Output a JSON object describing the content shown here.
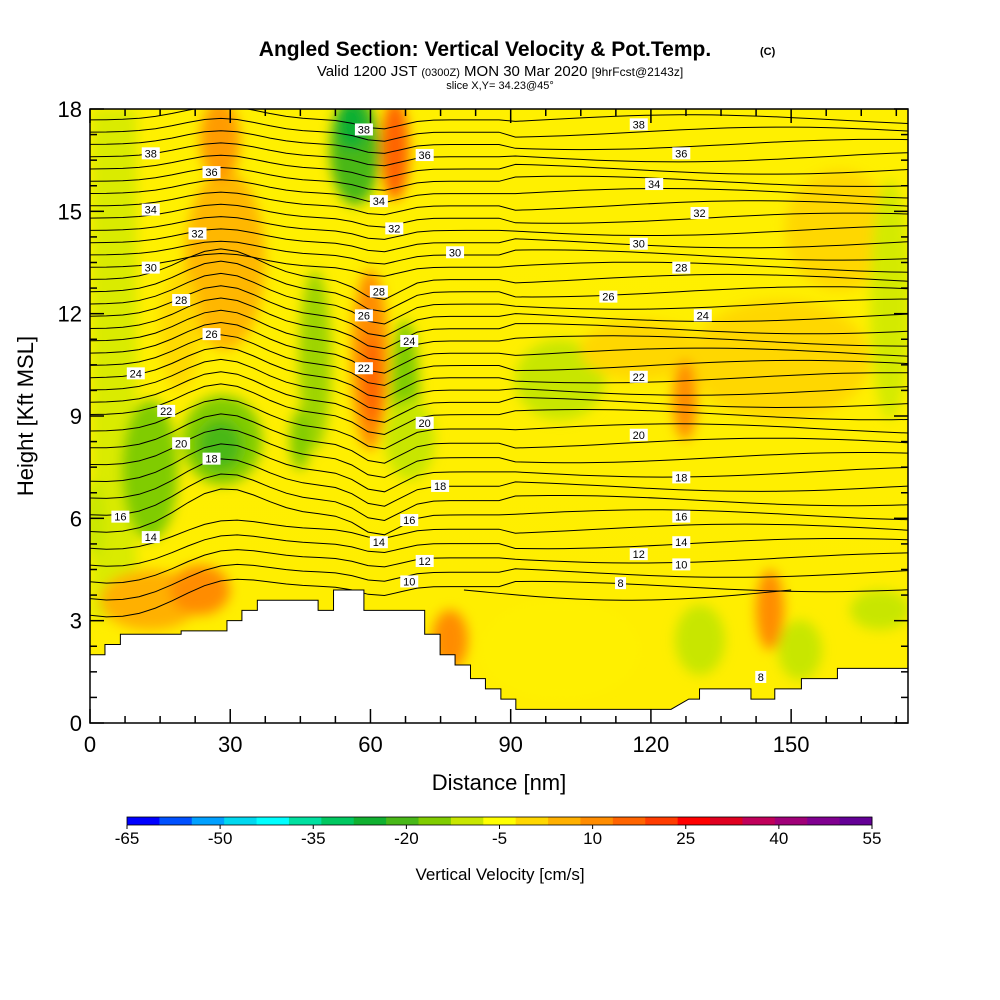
{
  "chart_data": {
    "type": "heatmap",
    "title": "Angled Section: Vertical Velocity & Pot.Temp.",
    "title_mark": "(C)",
    "subtitle_pre": "Valid 1200 JST",
    "subtitle_zulu": "(0300Z)",
    "subtitle_date": "MON 30 Mar 2020",
    "subtitle_fcst": "[9hrFcst@2143z]",
    "slice_label": "slice X,Y= 34.23@45°",
    "xlabel": "Distance [nm]",
    "ylabel": "Height [Kft MSL]",
    "xlim": [
      0,
      175
    ],
    "ylim": [
      0,
      18
    ],
    "x_ticks": [
      "0",
      "30",
      "60",
      "90",
      "120",
      "150"
    ],
    "x_tick_values": [
      0,
      30,
      60,
      90,
      120,
      150
    ],
    "y_ticks": [
      "0",
      "3",
      "6",
      "9",
      "12",
      "15",
      "18"
    ],
    "y_tick_values": [
      0,
      3,
      6,
      9,
      12,
      15,
      18
    ],
    "colorbar": {
      "title": "Vertical Velocity [cm/s]",
      "labels": [
        "-65",
        "-50",
        "-35",
        "-20",
        "-5",
        "10",
        "25",
        "40",
        "55"
      ],
      "colors": [
        "#0000ff",
        "#0050ff",
        "#00a0ff",
        "#00d8f0",
        "#00ffff",
        "#00e0a0",
        "#00c860",
        "#10b030",
        "#48b818",
        "#80cc00",
        "#c8e600",
        "#ffff00",
        "#ffd700",
        "#ffb000",
        "#ff8c00",
        "#ff6400",
        "#ff3c00",
        "#ff0000",
        "#e00020",
        "#c0005a",
        "#a00078",
        "#800090",
        "#640096"
      ]
    },
    "contour_labels": [
      {
        "text": "38",
        "x": 13,
        "y": 16.7
      },
      {
        "text": "36",
        "x": 26,
        "y": 16.15
      },
      {
        "text": "34",
        "x": 13,
        "y": 15.05
      },
      {
        "text": "32",
        "x": 23,
        "y": 14.35
      },
      {
        "text": "30",
        "x": 13,
        "y": 13.35
      },
      {
        "text": "28",
        "x": 19.5,
        "y": 12.4
      },
      {
        "text": "26",
        "x": 26,
        "y": 11.4
      },
      {
        "text": "24",
        "x": 9.8,
        "y": 10.25
      },
      {
        "text": "22",
        "x": 16.3,
        "y": 9.15
      },
      {
        "text": "20",
        "x": 19.5,
        "y": 8.2
      },
      {
        "text": "18",
        "x": 26,
        "y": 7.75
      },
      {
        "text": "16",
        "x": 6.5,
        "y": 6.05
      },
      {
        "text": "14",
        "x": 13,
        "y": 5.45
      },
      {
        "text": "38",
        "x": 58.6,
        "y": 17.4
      },
      {
        "text": "36",
        "x": 71.6,
        "y": 16.65
      },
      {
        "text": "34",
        "x": 61.8,
        "y": 15.3
      },
      {
        "text": "32",
        "x": 65.1,
        "y": 14.5
      },
      {
        "text": "30",
        "x": 78.1,
        "y": 13.8
      },
      {
        "text": "28",
        "x": 61.8,
        "y": 12.65
      },
      {
        "text": "26",
        "x": 58.6,
        "y": 11.95
      },
      {
        "text": "24",
        "x": 68.3,
        "y": 11.2
      },
      {
        "text": "22",
        "x": 58.6,
        "y": 10.4
      },
      {
        "text": "20",
        "x": 71.6,
        "y": 8.8
      },
      {
        "text": "18",
        "x": 74.9,
        "y": 6.95
      },
      {
        "text": "16",
        "x": 68.3,
        "y": 5.95
      },
      {
        "text": "14",
        "x": 61.8,
        "y": 5.3
      },
      {
        "text": "12",
        "x": 71.6,
        "y": 4.75
      },
      {
        "text": "10",
        "x": 68.3,
        "y": 4.15
      },
      {
        "text": "38",
        "x": 117.4,
        "y": 17.55
      },
      {
        "text": "36",
        "x": 126.5,
        "y": 16.7
      },
      {
        "text": "34",
        "x": 120.7,
        "y": 15.8
      },
      {
        "text": "32",
        "x": 130.4,
        "y": 14.95
      },
      {
        "text": "30",
        "x": 117.4,
        "y": 14.05
      },
      {
        "text": "28",
        "x": 126.5,
        "y": 13.35
      },
      {
        "text": "26",
        "x": 110.9,
        "y": 12.5
      },
      {
        "text": "24",
        "x": 131.1,
        "y": 11.95
      },
      {
        "text": "22",
        "x": 117.4,
        "y": 10.15
      },
      {
        "text": "20",
        "x": 117.4,
        "y": 8.45
      },
      {
        "text": "18",
        "x": 126.5,
        "y": 7.2
      },
      {
        "text": "16",
        "x": 126.5,
        "y": 6.05
      },
      {
        "text": "14",
        "x": 126.5,
        "y": 5.3
      },
      {
        "text": "12",
        "x": 117.4,
        "y": 4.95
      },
      {
        "text": "10",
        "x": 126.5,
        "y": 4.65
      },
      {
        "text": "8",
        "x": 113.5,
        "y": 4.1
      },
      {
        "text": "8",
        "x": 143.5,
        "y": 1.35
      }
    ],
    "terrain": [
      [
        0,
        2.0
      ],
      [
        3.2,
        2.0
      ],
      [
        3.2,
        2.3
      ],
      [
        6.5,
        2.3
      ],
      [
        6.5,
        2.6
      ],
      [
        19.5,
        2.6
      ],
      [
        19.5,
        2.7
      ],
      [
        29.3,
        2.7
      ],
      [
        29.3,
        3.0
      ],
      [
        32.5,
        3.0
      ],
      [
        32.5,
        3.3
      ],
      [
        35.8,
        3.3
      ],
      [
        35.8,
        3.6
      ],
      [
        48.8,
        3.6
      ],
      [
        48.8,
        3.3
      ],
      [
        52.1,
        3.3
      ],
      [
        52.1,
        3.9
      ],
      [
        58.6,
        3.9
      ],
      [
        58.6,
        3.3
      ],
      [
        71.6,
        3.3
      ],
      [
        71.6,
        2.6
      ],
      [
        74.9,
        2.6
      ],
      [
        74.9,
        2.0
      ],
      [
        78.1,
        2.0
      ],
      [
        78.1,
        1.7
      ],
      [
        81.4,
        1.7
      ],
      [
        81.4,
        1.3
      ],
      [
        84.6,
        1.3
      ],
      [
        84.6,
        1.0
      ],
      [
        87.9,
        1.0
      ],
      [
        87.9,
        0.7
      ],
      [
        91.1,
        0.7
      ],
      [
        91.1,
        0.4
      ],
      [
        117.4,
        0.4
      ],
      [
        124.3,
        0.4
      ],
      [
        128.1,
        0.7
      ],
      [
        130.4,
        0.7
      ],
      [
        130.4,
        1.0
      ],
      [
        141.4,
        1.0
      ],
      [
        141.4,
        0.7
      ],
      [
        146.5,
        0.7
      ],
      [
        146.5,
        1.0
      ],
      [
        152.2,
        1.0
      ],
      [
        152.2,
        1.3
      ],
      [
        159.9,
        1.3
      ],
      [
        159.9,
        1.6
      ],
      [
        175,
        1.6
      ]
    ]
  }
}
